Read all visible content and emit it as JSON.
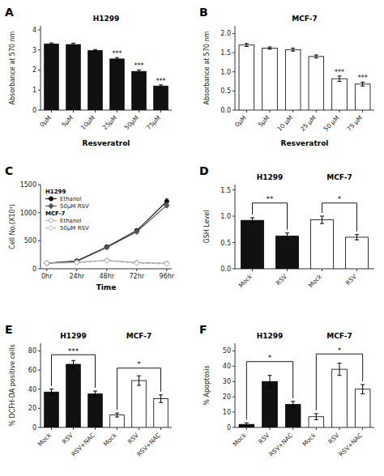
{
  "chart_data": [
    {
      "type": "bar",
      "panel_label": "A",
      "title": "H1299",
      "x_label": "Resveratrol",
      "y_label": "Absorbance at 570 nm",
      "categories": [
        "0μM",
        "5μM",
        "10μM",
        "25μM",
        "50μM",
        "75μM"
      ],
      "values": [
        3.3,
        3.27,
        2.97,
        2.55,
        1.93,
        1.2
      ],
      "errors": [
        0.05,
        0.07,
        0.05,
        0.07,
        0.07,
        0.06
      ],
      "sig_labels": [
        null,
        null,
        null,
        "***",
        "***",
        "***"
      ],
      "color": "#111111",
      "ylim": [
        0,
        4.2
      ],
      "yticks": [
        0,
        1,
        2,
        3,
        4
      ]
    },
    {
      "type": "bar",
      "panel_label": "B",
      "title": "MCF-7",
      "x_label": "Resveratrol",
      "y_label": "Absorbance at 570 nm",
      "categories": [
        "0μM",
        "5μM",
        "10 μM",
        "25 μM",
        "50 μM",
        "75 μM"
      ],
      "values": [
        1.7,
        1.62,
        1.58,
        1.4,
        0.82,
        0.68
      ],
      "errors": [
        0.04,
        0.03,
        0.04,
        0.04,
        0.07,
        0.05
      ],
      "sig_labels": [
        null,
        null,
        null,
        null,
        "***",
        "***"
      ],
      "color": "#ffffff",
      "ylim": [
        0,
        2.2
      ],
      "yticks": [
        {
          "value": 0,
          "label": "0.0"
        },
        0.5,
        {
          "value": 1,
          "label": "1.0"
        },
        1.5,
        {
          "value": 2,
          "label": "2.0"
        }
      ]
    },
    {
      "type": "line",
      "panel_label": "C",
      "x_label": "Time",
      "y_label": "Cell No.(X10³)",
      "x": [
        0,
        24,
        48,
        72,
        96
      ],
      "xlim": [
        -5,
        100
      ],
      "xticks": [
        {
          "value": 0,
          "label": "0hr"
        },
        {
          "value": 24,
          "label": "24hr"
        },
        {
          "value": 48,
          "label": "48hr"
        },
        {
          "value": 72,
          "label": "72hr"
        },
        {
          "value": 96,
          "label": "96hr"
        }
      ],
      "ylim": [
        0,
        1500
      ],
      "yticks": [
        0,
        500,
        1000,
        1500
      ],
      "legend": "upper left",
      "series": [
        {
          "name": "Ethanol",
          "group": "H1299",
          "values": [
            100,
            140,
            390,
            680,
            1200
          ],
          "errors": [
            10,
            15,
            20,
            30,
            50
          ],
          "color": "#111111",
          "marker": "circle",
          "line_style": "solid"
        },
        {
          "name": "50μM RSV",
          "group": "H1299",
          "values": [
            100,
            130,
            380,
            660,
            1130
          ],
          "errors": [
            10,
            12,
            18,
            35,
            45
          ],
          "color": "#555555",
          "marker": "diamond",
          "line_style": "solid"
        },
        {
          "name": "Ethanol",
          "group": "MCF-7",
          "values": [
            100,
            115,
            150,
            110,
            100
          ],
          "errors": [
            8,
            10,
            15,
            10,
            8
          ],
          "color": "#aaaaaa",
          "marker": "circle-open",
          "line_style": "solid"
        },
        {
          "name": "50μM RSV",
          "group": "MCF-7",
          "values": [
            100,
            110,
            145,
            100,
            90
          ],
          "errors": [
            8,
            9,
            12,
            8,
            7
          ],
          "color": "#aaaaaa",
          "marker": "diamond-open",
          "line_style": "dashed"
        }
      ]
    },
    {
      "type": "bar",
      "panel_label": "D",
      "y_label": "GSH Level",
      "categories": [
        "Mock",
        "RSV",
        "Mock",
        "RSV"
      ],
      "groups": [
        "H1299",
        "H1299",
        "MCF-7",
        "MCF-7"
      ],
      "values": [
        0.92,
        0.62,
        0.93,
        0.6
      ],
      "errors": [
        0.05,
        0.06,
        0.07,
        0.05
      ],
      "colors": [
        "#111111",
        "#111111",
        "#ffffff",
        "#ffffff"
      ],
      "brackets": [
        {
          "x1": 0,
          "x2": 1,
          "y": 1.25,
          "label": "**"
        },
        {
          "x1": 2,
          "x2": 3,
          "y": 1.25,
          "label": "*"
        }
      ],
      "ylim": [
        0,
        1.6
      ],
      "yticks": [
        {
          "value": 0,
          "label": "0.0"
        },
        0.5,
        {
          "value": 1,
          "label": "1.0"
        },
        1.5
      ]
    },
    {
      "type": "bar",
      "panel_label": "E",
      "y_label": "% DCFH-DA positive cells",
      "categories": [
        "Mock",
        "RSV",
        "RSV+NAC",
        "Mock",
        "RSV",
        "RSV+NAC"
      ],
      "groups": [
        "H1299",
        "H1299",
        "H1299",
        "MCF-7",
        "MCF-7",
        "MCF-7"
      ],
      "values": [
        37,
        66,
        35,
        13,
        49,
        30
      ],
      "errors": [
        3,
        4,
        3,
        2,
        5,
        4
      ],
      "colors": [
        "#111111",
        "#111111",
        "#111111",
        "#ffffff",
        "#ffffff",
        "#ffffff"
      ],
      "brackets": [
        {
          "x1": 0,
          "x2": 2,
          "y": 76,
          "label": "***"
        },
        {
          "x1": 3,
          "x2": 5,
          "y": 62,
          "label": "*"
        }
      ],
      "ylim": [
        0,
        88
      ],
      "yticks": [
        0,
        20,
        40,
        60,
        80
      ]
    },
    {
      "type": "bar",
      "panel_label": "F",
      "y_label": "% Apoptosis",
      "categories": [
        "Mock",
        "RSV",
        "RSV+NAC",
        "Mock",
        "RSV",
        "RSV+NAC"
      ],
      "groups": [
        "H1299",
        "H1299",
        "H1299",
        "MCF-7",
        "MCF-7",
        "MCF-7"
      ],
      "values": [
        2,
        30,
        15,
        7,
        38,
        25
      ],
      "errors": [
        1,
        4,
        2,
        2,
        4,
        3
      ],
      "colors": [
        "#111111",
        "#111111",
        "#111111",
        "#ffffff",
        "#ffffff",
        "#ffffff"
      ],
      "brackets": [
        {
          "x1": 0,
          "x2": 2,
          "y": 43,
          "label": "*"
        },
        {
          "x1": 3,
          "x2": 5,
          "y": 48,
          "label": "*"
        }
      ],
      "ylim": [
        0,
        55
      ],
      "yticks": [
        0,
        10,
        20,
        30,
        40,
        50
      ]
    }
  ]
}
